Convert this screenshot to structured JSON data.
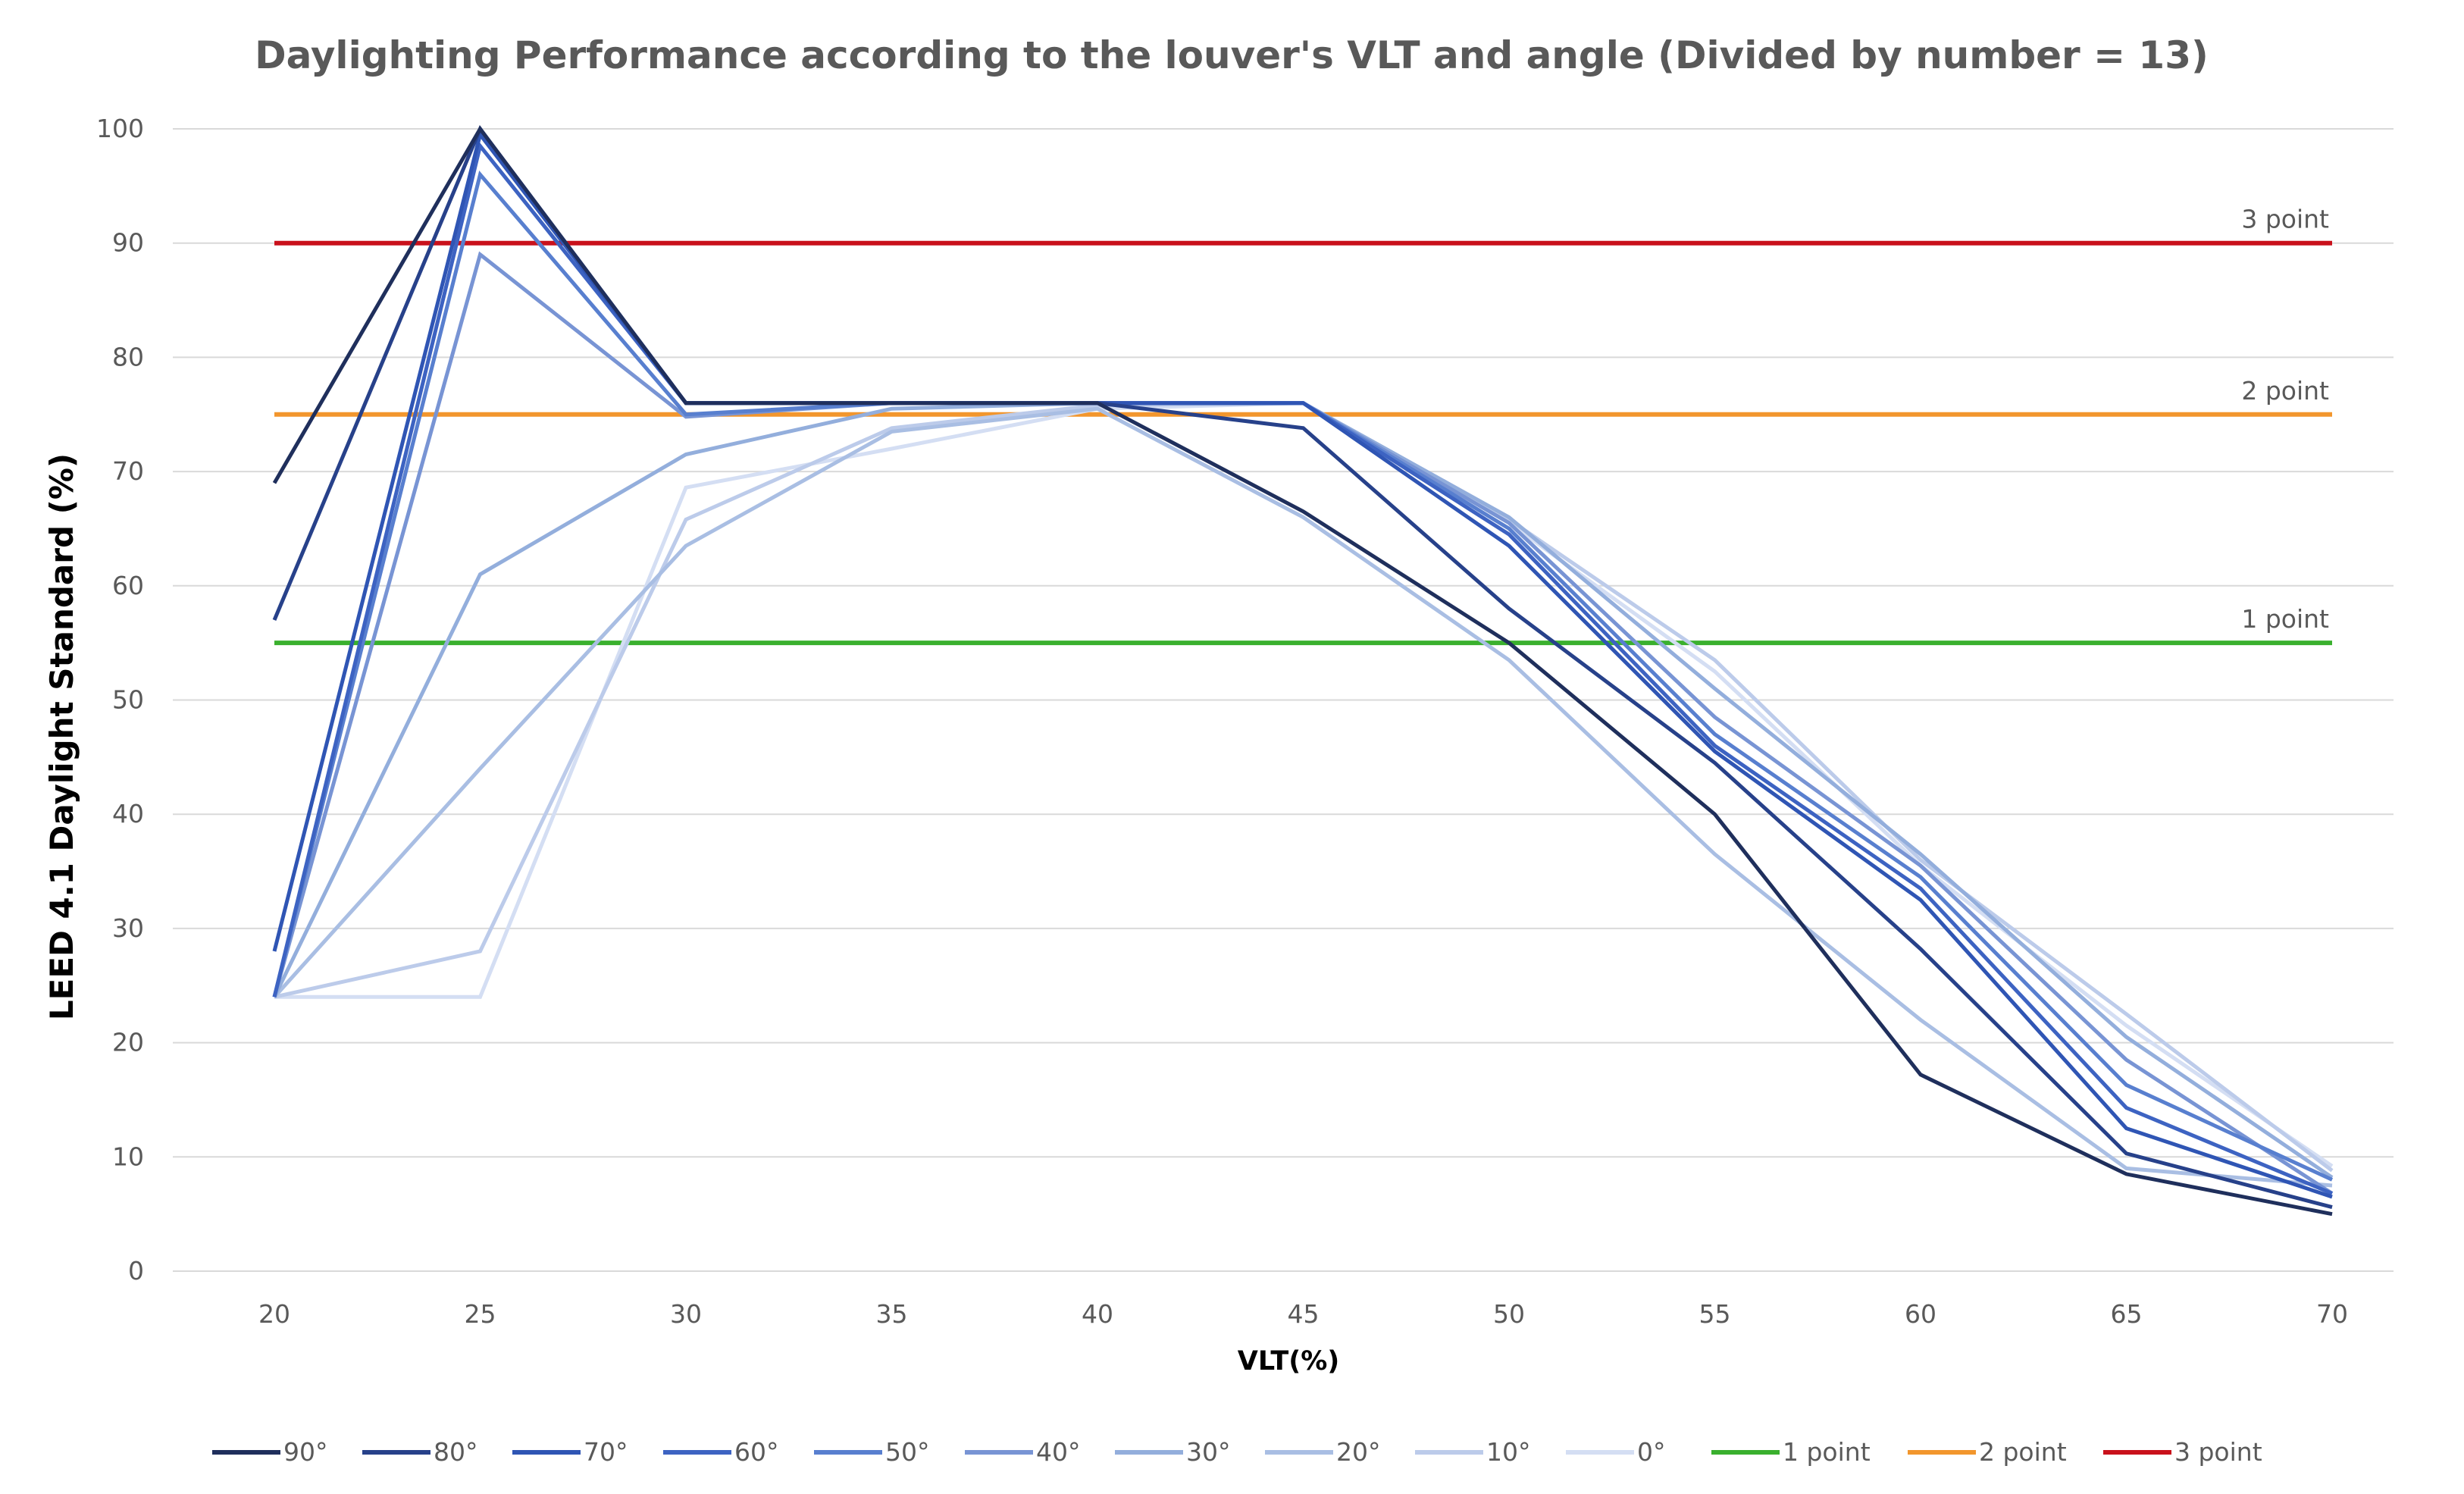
{
  "chart_data": {
    "type": "line",
    "title": "Daylighting Performance according to the louver's VLT and angle (Divided by number = 13)",
    "xlabel": "VLT(%)",
    "ylabel": "LEED 4.1 Daylight Standard (%)",
    "x": [
      20,
      25,
      30,
      35,
      40,
      45,
      50,
      55,
      60,
      65,
      70
    ],
    "ylim": [
      0,
      100
    ],
    "yticks": [
      0,
      10,
      20,
      30,
      40,
      50,
      60,
      70,
      80,
      90,
      100
    ],
    "grid": true,
    "legend_position": "bottom",
    "series": [
      {
        "name": "90°",
        "color": "#1f2f5c",
        "values": [
          69,
          100,
          76,
          76,
          76,
          66.5,
          55,
          40,
          17.2,
          8.5,
          5
        ]
      },
      {
        "name": "80°",
        "color": "#27418a",
        "values": [
          57,
          100,
          76,
          76,
          76,
          73.8,
          58,
          44.5,
          28.2,
          10.3,
          5.6
        ]
      },
      {
        "name": "70°",
        "color": "#2f55b4",
        "values": [
          28,
          99.5,
          76,
          76,
          76,
          76,
          63.5,
          45.5,
          32.5,
          12.5,
          6.5
        ]
      },
      {
        "name": "60°",
        "color": "#3d63c2",
        "values": [
          24,
          98.5,
          76,
          76,
          76,
          76,
          64.5,
          46,
          33.5,
          14.3,
          6.8
        ]
      },
      {
        "name": "50°",
        "color": "#587fcf",
        "values": [
          24,
          96,
          75,
          76,
          76,
          76,
          65,
          47,
          34.5,
          16.3,
          8
        ]
      },
      {
        "name": "40°",
        "color": "#7894d4",
        "values": [
          24,
          89,
          74.8,
          76,
          76,
          76,
          65.5,
          48.5,
          35.5,
          18.5,
          6.8
        ]
      },
      {
        "name": "30°",
        "color": "#93aedc",
        "values": [
          24,
          61,
          71.5,
          75.5,
          76,
          76,
          66,
          51,
          36.5,
          20.5,
          8.2
        ]
      },
      {
        "name": "20°",
        "color": "#a9bee3",
        "values": [
          24,
          44,
          63.5,
          73.5,
          75.5,
          66,
          53.5,
          36.5,
          22,
          9,
          7.5
        ]
      },
      {
        "name": "10°",
        "color": "#bccbea",
        "values": [
          24,
          28,
          65.8,
          73.8,
          75.8,
          76,
          65.8,
          53.5,
          36,
          22.5,
          8.8
        ]
      },
      {
        "name": "0°",
        "color": "#d4def3",
        "values": [
          24,
          24,
          68.6,
          72,
          75.5,
          76,
          65.5,
          52.5,
          35.5,
          21.5,
          9.2
        ]
      }
    ],
    "reference_lines": [
      {
        "name": "1 point",
        "value": 55,
        "color": "#3ab02e",
        "label": "1 point"
      },
      {
        "name": "2 point",
        "value": 75,
        "color": "#f2962d",
        "label": "2 point"
      },
      {
        "name": "3 point",
        "value": 90,
        "color": "#c9111b",
        "label": "3 point"
      }
    ]
  }
}
